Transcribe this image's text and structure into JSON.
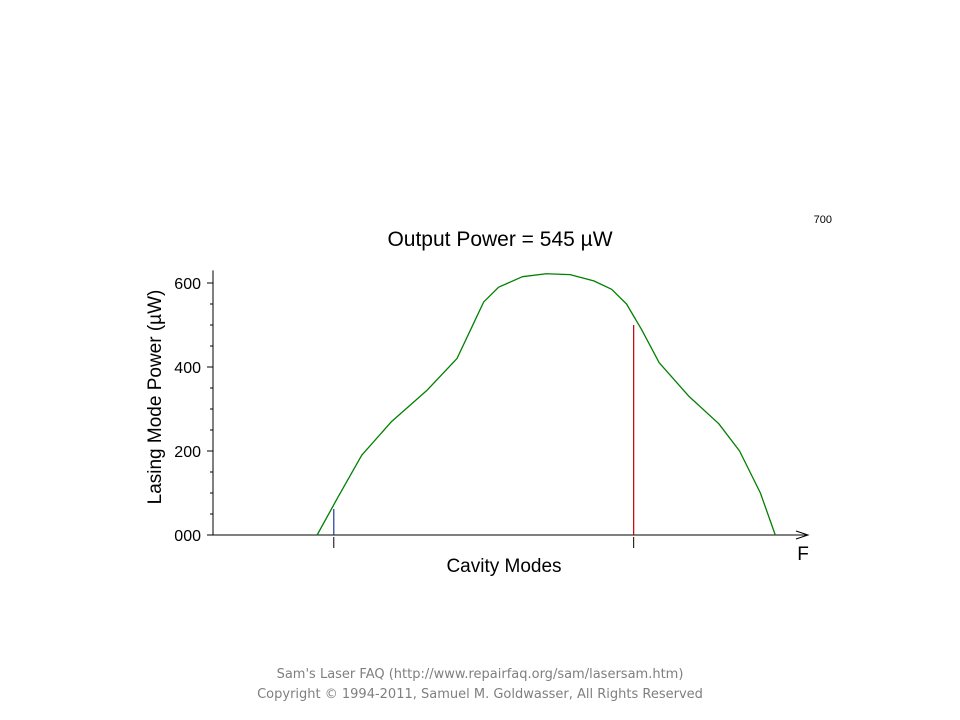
{
  "chart_data": {
    "type": "line",
    "title": "Output Power = 545 µW",
    "ylabel": "Lasing Mode Power (µW)",
    "xlabel": "Cavity Modes",
    "x_axis_letter": "F",
    "corner_label": "700",
    "ylim": [
      0,
      630
    ],
    "xlim": [
      0,
      1
    ],
    "y_ticks": [
      {
        "value": 0,
        "label": "000"
      },
      {
        "value": 200,
        "label": "200"
      },
      {
        "value": 400,
        "label": "400"
      },
      {
        "value": 600,
        "label": "600"
      }
    ],
    "grid": false,
    "series": [
      {
        "color": "#008000",
        "points": [
          [
            0.175,
            0
          ],
          [
            0.21,
            90
          ],
          [
            0.25,
            190
          ],
          [
            0.3,
            270
          ],
          [
            0.36,
            345
          ],
          [
            0.41,
            420
          ],
          [
            0.44,
            510
          ],
          [
            0.455,
            555
          ],
          [
            0.48,
            590
          ],
          [
            0.52,
            615
          ],
          [
            0.56,
            622
          ],
          [
            0.6,
            620
          ],
          [
            0.64,
            605
          ],
          [
            0.67,
            585
          ],
          [
            0.695,
            550
          ],
          [
            0.72,
            490
          ],
          [
            0.75,
            410
          ],
          [
            0.8,
            330
          ],
          [
            0.85,
            265
          ],
          [
            0.885,
            200
          ],
          [
            0.92,
            100
          ],
          [
            0.945,
            0
          ]
        ]
      }
    ],
    "mode_markers": [
      {
        "x": 0.203,
        "value": 62,
        "color": "#1f3a93"
      },
      {
        "x": 0.707,
        "value": 500,
        "color": "#c00000"
      }
    ]
  },
  "footer": {
    "line1": "Sam's Laser FAQ (http://www.repairfaq.org/sam/lasersam.htm)",
    "line2": "Copyright © 1994-2011, Samuel M. Goldwasser, All Rights Reserved"
  }
}
